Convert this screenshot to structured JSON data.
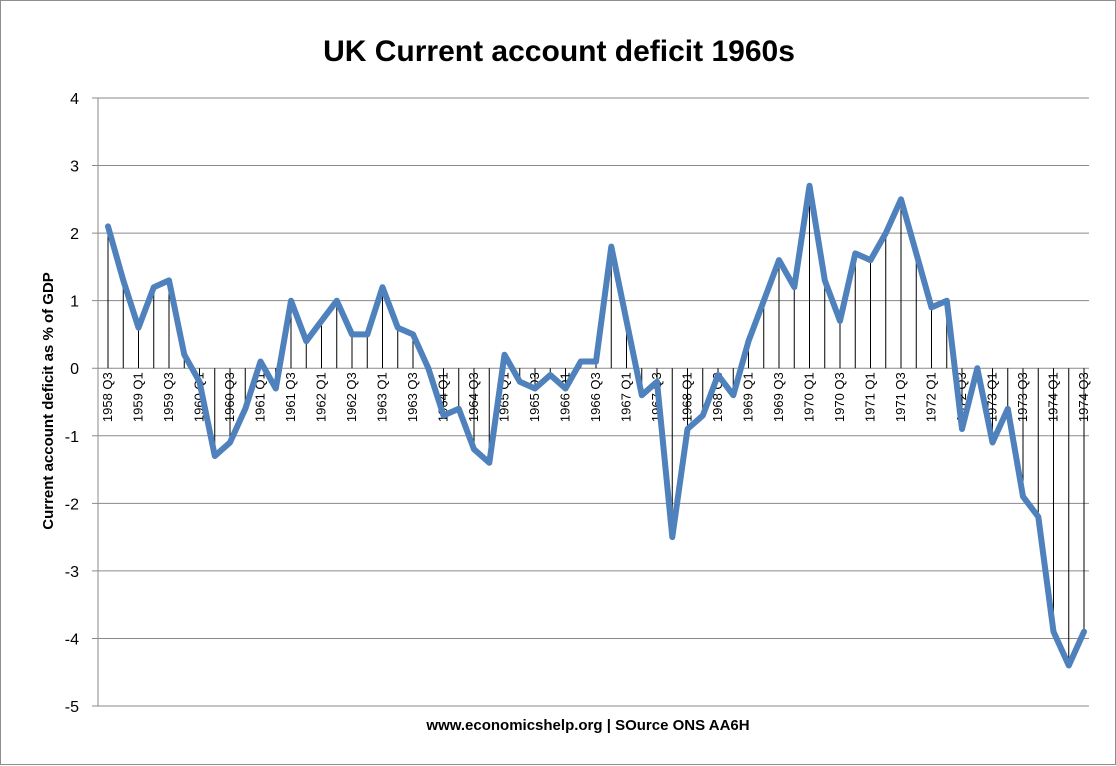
{
  "chart_data": {
    "type": "line",
    "title": "UK Current account deficit 1960s",
    "ylabel": "Current account deficit as % of GDP",
    "source": "www.economicshelp.org | SOurce ONS AA6H",
    "ylim": [
      -5,
      4
    ],
    "yticks": [
      4,
      3,
      2,
      1,
      0,
      -1,
      -2,
      -3,
      -4,
      -5
    ],
    "grid": true,
    "drop_lines": true,
    "series_color": "#4F81BD",
    "x_start": "1958 Q3",
    "x_end": "1974 Q3",
    "x_label_every": 2,
    "x_labels": [
      "1958 Q3",
      "1959 Q1",
      "1959 Q3",
      "1960 Q1",
      "1960 Q3",
      "1961 Q1",
      "1961 Q3",
      "1962 Q1",
      "1962 Q3",
      "1963 Q1",
      "1963 Q3",
      "1964 Q1",
      "1964 Q3",
      "1965 Q1",
      "1965 Q3",
      "1966 Q1",
      "1966 Q3",
      "1967 Q1",
      "1967 Q3",
      "1968 Q1",
      "1968 Q3",
      "1969 Q1",
      "1969 Q3",
      "1970 Q1",
      "1970 Q3",
      "1971 Q1",
      "1971 Q3",
      "1972 Q1",
      "1972 Q3",
      "1973 Q1",
      "1973 Q3",
      "1974 Q1",
      "1974 Q3"
    ],
    "series": [
      {
        "values": [
          2.1,
          1.3,
          0.6,
          1.2,
          1.3,
          0.2,
          -0.2,
          -1.3,
          -1.1,
          -0.6,
          0.1,
          -0.3,
          1.0,
          0.4,
          0.7,
          1.0,
          0.5,
          0.5,
          1.2,
          0.6,
          0.5,
          0.0,
          -0.7,
          -0.6,
          -1.2,
          -1.4,
          0.2,
          -0.2,
          -0.3,
          -0.1,
          -0.3,
          0.1,
          0.1,
          1.8,
          0.7,
          -0.4,
          -0.2,
          -2.5,
          -0.9,
          -0.7,
          -0.1,
          -0.4,
          0.4,
          1.0,
          1.6,
          1.2,
          2.7,
          1.3,
          0.7,
          1.7,
          1.6,
          2.0,
          2.5,
          1.7,
          0.9,
          1.0,
          -0.9,
          0.0,
          -1.1,
          -0.6,
          -1.9,
          -2.2,
          -3.9,
          -4.4,
          -3.9
        ]
      }
    ]
  }
}
